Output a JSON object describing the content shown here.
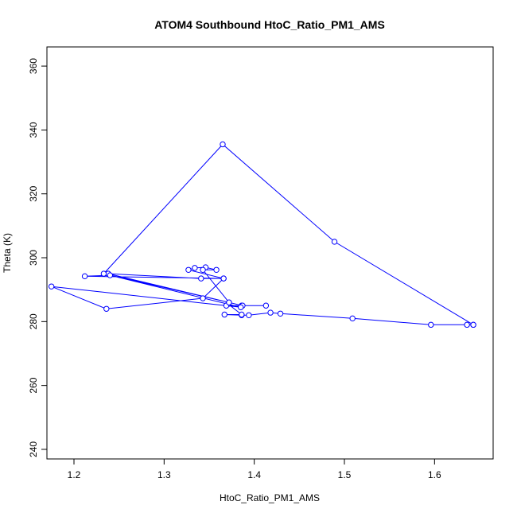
{
  "chart_data": {
    "type": "line",
    "title": "ATOM4 Southbound HtoC_Ratio_PM1_AMS",
    "xlabel": "HtoC_Ratio_PM1_AMS",
    "ylabel": "Theta (K)",
    "xlim": [
      1.17,
      1.665
    ],
    "ylim": [
      237,
      366
    ],
    "x_ticks": [
      1.2,
      1.3,
      1.4,
      1.5,
      1.6
    ],
    "x_tick_labels": [
      "1.2",
      "1.3",
      "1.4",
      "1.5",
      "1.6"
    ],
    "y_ticks": [
      240,
      260,
      280,
      300,
      320,
      340,
      360
    ],
    "y_tick_labels": [
      "240",
      "260",
      "280",
      "300",
      "320",
      "340",
      "360"
    ],
    "grid": false,
    "series": [
      {
        "color": "#0000ff",
        "marker": "open-circle",
        "x": [
          1.643,
          1.636,
          1.596,
          1.509,
          1.429,
          1.418,
          1.394,
          1.386,
          1.367,
          1.386,
          1.371,
          1.369,
          1.386,
          1.413,
          1.387,
          1.238,
          1.341,
          1.366,
          1.212,
          1.24,
          1.385,
          1.175,
          1.236,
          1.343,
          1.366,
          1.327,
          1.334,
          1.346,
          1.358,
          1.343,
          1.372,
          1.233,
          1.365,
          1.489,
          1.643
        ],
        "y": [
          279.0,
          279.0,
          279.0,
          281.0,
          282.5,
          282.8,
          282.0,
          282.0,
          282.2,
          282.2,
          285.5,
          285.0,
          285.0,
          285.0,
          285.0,
          295.0,
          293.5,
          293.5,
          294.2,
          294.5,
          284.5,
          291.0,
          284.0,
          287.3,
          293.5,
          296.2,
          296.8,
          297.0,
          296.2,
          296.2,
          286.0,
          295.0,
          335.5,
          305.0,
          279.0
        ]
      }
    ]
  }
}
